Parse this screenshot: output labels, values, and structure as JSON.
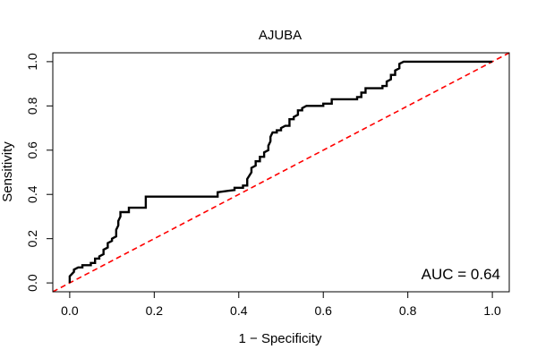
{
  "chart_data": {
    "type": "line",
    "title": "AJUBA",
    "xlabel": "1 − Specificity",
    "ylabel": "Sensitivity",
    "xlim": [
      -0.04,
      1.04
    ],
    "ylim": [
      -0.04,
      1.04
    ],
    "grid": false,
    "legend": "none",
    "x_ticks": [
      0.0,
      0.2,
      0.4,
      0.6,
      0.8,
      1.0
    ],
    "y_ticks": [
      0.0,
      0.2,
      0.4,
      0.6,
      0.8,
      1.0
    ],
    "x_tick_labels": [
      "0.0",
      "0.2",
      "0.4",
      "0.6",
      "0.8",
      "1.0"
    ],
    "y_tick_labels": [
      "0.0",
      "0.2",
      "0.4",
      "0.6",
      "0.8",
      "1.0"
    ],
    "annotation": "AUC = 0.64",
    "auc": 0.64,
    "series": [
      {
        "color": "#000000",
        "style": "step",
        "points": [
          [
            0.0,
            0.0
          ],
          [
            0.0,
            0.03
          ],
          [
            0.01,
            0.05
          ],
          [
            0.01,
            0.06
          ],
          [
            0.02,
            0.07
          ],
          [
            0.03,
            0.07
          ],
          [
            0.03,
            0.08
          ],
          [
            0.05,
            0.08
          ],
          [
            0.05,
            0.09
          ],
          [
            0.06,
            0.09
          ],
          [
            0.06,
            0.11
          ],
          [
            0.07,
            0.11
          ],
          [
            0.07,
            0.12
          ],
          [
            0.08,
            0.13
          ],
          [
            0.08,
            0.15
          ],
          [
            0.09,
            0.16
          ],
          [
            0.09,
            0.18
          ],
          [
            0.1,
            0.19
          ],
          [
            0.1,
            0.2
          ],
          [
            0.11,
            0.21
          ],
          [
            0.11,
            0.24
          ],
          [
            0.115,
            0.26
          ],
          [
            0.115,
            0.28
          ],
          [
            0.12,
            0.3
          ],
          [
            0.12,
            0.32
          ],
          [
            0.14,
            0.32
          ],
          [
            0.14,
            0.34
          ],
          [
            0.18,
            0.34
          ],
          [
            0.18,
            0.39
          ],
          [
            0.35,
            0.39
          ],
          [
            0.35,
            0.41
          ],
          [
            0.39,
            0.42
          ],
          [
            0.39,
            0.43
          ],
          [
            0.41,
            0.43
          ],
          [
            0.41,
            0.44
          ],
          [
            0.42,
            0.44
          ],
          [
            0.42,
            0.47
          ],
          [
            0.43,
            0.5
          ],
          [
            0.43,
            0.52
          ],
          [
            0.44,
            0.53
          ],
          [
            0.44,
            0.55
          ],
          [
            0.45,
            0.55
          ],
          [
            0.45,
            0.57
          ],
          [
            0.46,
            0.57
          ],
          [
            0.46,
            0.59
          ],
          [
            0.47,
            0.6
          ],
          [
            0.47,
            0.62
          ],
          [
            0.475,
            0.64
          ],
          [
            0.475,
            0.66
          ],
          [
            0.48,
            0.68
          ],
          [
            0.49,
            0.68
          ],
          [
            0.49,
            0.69
          ],
          [
            0.5,
            0.69
          ],
          [
            0.5,
            0.7
          ],
          [
            0.51,
            0.71
          ],
          [
            0.52,
            0.71
          ],
          [
            0.52,
            0.74
          ],
          [
            0.53,
            0.74
          ],
          [
            0.53,
            0.75
          ],
          [
            0.54,
            0.76
          ],
          [
            0.54,
            0.78
          ],
          [
            0.55,
            0.78
          ],
          [
            0.55,
            0.79
          ],
          [
            0.56,
            0.8
          ],
          [
            0.6,
            0.8
          ],
          [
            0.6,
            0.81
          ],
          [
            0.62,
            0.81
          ],
          [
            0.62,
            0.83
          ],
          [
            0.68,
            0.83
          ],
          [
            0.68,
            0.84
          ],
          [
            0.69,
            0.84
          ],
          [
            0.69,
            0.86
          ],
          [
            0.7,
            0.86
          ],
          [
            0.7,
            0.88
          ],
          [
            0.74,
            0.88
          ],
          [
            0.74,
            0.89
          ],
          [
            0.75,
            0.89
          ],
          [
            0.75,
            0.91
          ],
          [
            0.76,
            0.92
          ],
          [
            0.76,
            0.94
          ],
          [
            0.77,
            0.94
          ],
          [
            0.77,
            0.96
          ],
          [
            0.78,
            0.97
          ],
          [
            0.78,
            0.99
          ],
          [
            0.79,
            1.0
          ],
          [
            1.0,
            1.0
          ]
        ]
      },
      {
        "color": "#ff0000",
        "style": "dashed",
        "points": [
          [
            -0.04,
            -0.04
          ],
          [
            1.04,
            1.04
          ]
        ]
      }
    ]
  }
}
